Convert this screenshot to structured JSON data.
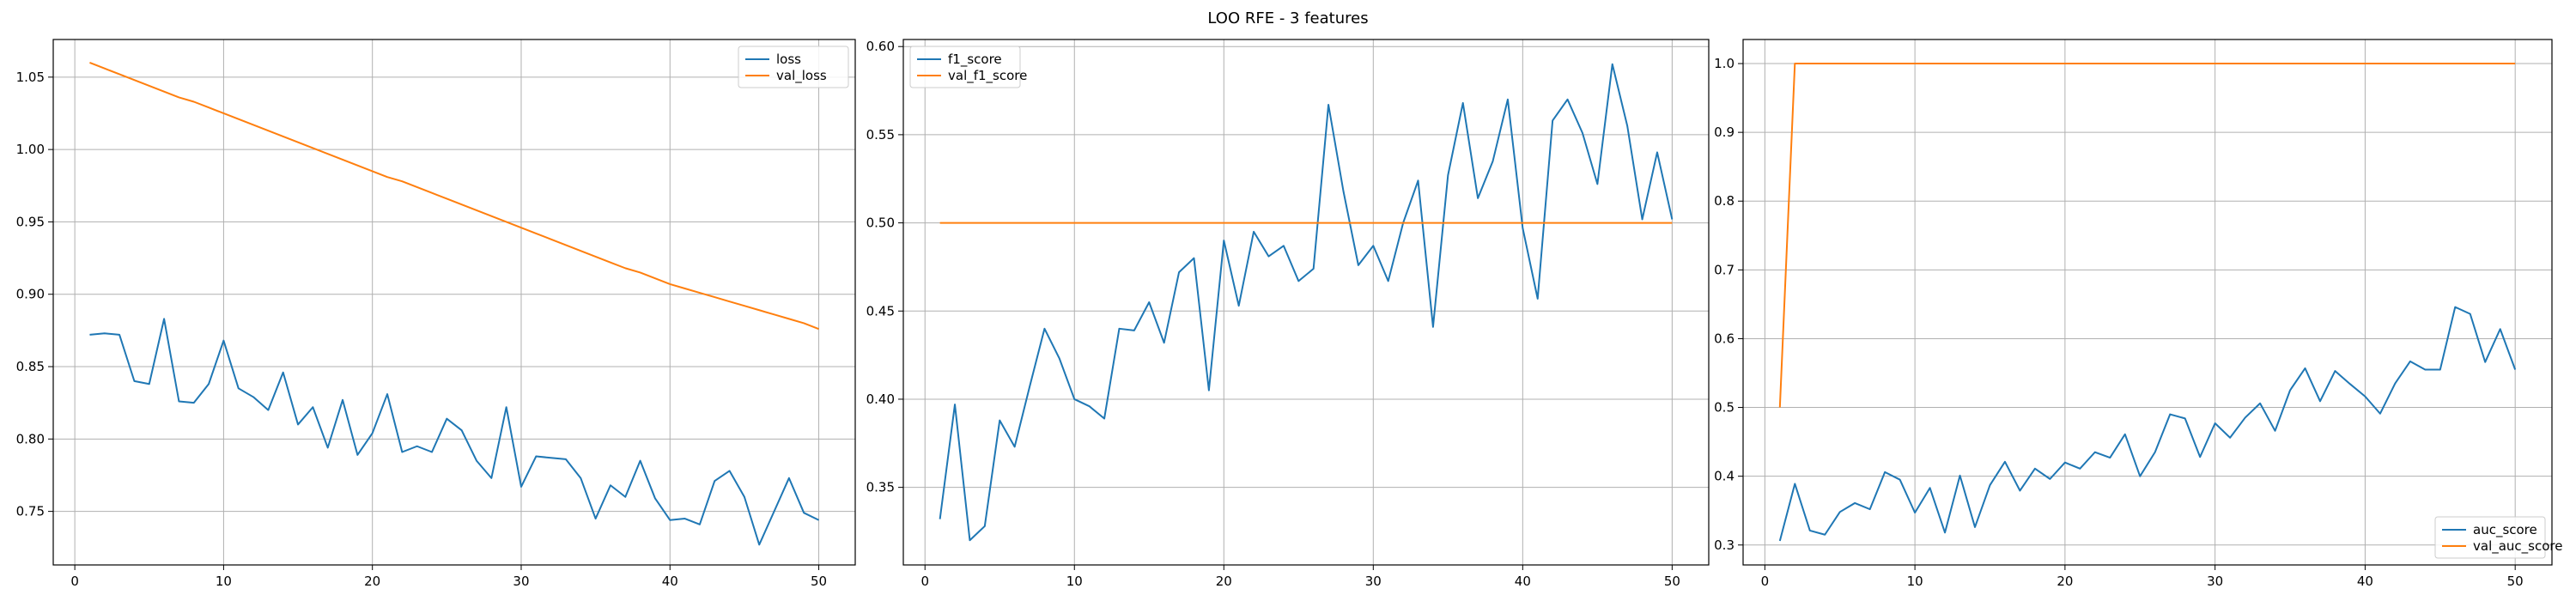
{
  "figure": {
    "suptitle": "LOO RFE - 3 features"
  },
  "colors": {
    "blue": "#1f77b4",
    "orange": "#ff7f0e",
    "grid": "#b0b0b0"
  },
  "chart_data": [
    {
      "type": "line",
      "title": "",
      "xlabel": "",
      "ylabel": "",
      "grid": true,
      "legend_position": "top-right",
      "xlim": [
        -1.45,
        52.45
      ],
      "ylim": [
        0.713,
        1.076
      ],
      "xticks": [
        0,
        10,
        20,
        30,
        40,
        50
      ],
      "yticks": [
        0.75,
        0.8,
        0.85,
        0.9,
        0.95,
        1.0,
        1.05
      ],
      "ytick_labels": [
        "0.75",
        "0.80",
        "0.85",
        "0.90",
        "0.95",
        "1.00",
        "1.05"
      ],
      "x": [
        1,
        2,
        3,
        4,
        5,
        6,
        7,
        8,
        9,
        10,
        11,
        12,
        13,
        14,
        15,
        16,
        17,
        18,
        19,
        20,
        21,
        22,
        23,
        24,
        25,
        26,
        27,
        28,
        29,
        30,
        31,
        32,
        33,
        34,
        35,
        36,
        37,
        38,
        39,
        40,
        41,
        42,
        43,
        44,
        45,
        46,
        47,
        48,
        49,
        50
      ],
      "series": [
        {
          "name": "loss",
          "color": "#1f77b4",
          "values": [
            0.872,
            0.873,
            0.872,
            0.84,
            0.838,
            0.883,
            0.826,
            0.825,
            0.838,
            0.868,
            0.835,
            0.829,
            0.82,
            0.846,
            0.81,
            0.822,
            0.794,
            0.827,
            0.789,
            0.804,
            0.831,
            0.791,
            0.795,
            0.791,
            0.814,
            0.806,
            0.785,
            0.773,
            0.822,
            0.767,
            0.788,
            0.787,
            0.786,
            0.773,
            0.745,
            0.768,
            0.76,
            0.785,
            0.759,
            0.744,
            0.745,
            0.741,
            0.771,
            0.778,
            0.76,
            0.727,
            0.75,
            0.773,
            0.749,
            0.744
          ]
        },
        {
          "name": "val_loss",
          "color": "#ff7f0e",
          "values": [
            1.06,
            1.056,
            1.052,
            1.048,
            1.044,
            1.04,
            1.036,
            1.033,
            1.029,
            1.025,
            1.021,
            1.017,
            1.013,
            1.009,
            1.005,
            1.001,
            0.997,
            0.993,
            0.989,
            0.985,
            0.981,
            0.978,
            0.974,
            0.97,
            0.966,
            0.962,
            0.958,
            0.954,
            0.95,
            0.946,
            0.942,
            0.938,
            0.934,
            0.93,
            0.926,
            0.922,
            0.918,
            0.915,
            0.911,
            0.907,
            0.904,
            0.901,
            0.898,
            0.895,
            0.892,
            0.889,
            0.886,
            0.883,
            0.88,
            0.876
          ]
        }
      ]
    },
    {
      "type": "line",
      "title": "",
      "xlabel": "",
      "ylabel": "",
      "grid": true,
      "legend_position": "top-left",
      "xlim": [
        -1.45,
        52.45
      ],
      "ylim": [
        0.306,
        0.604
      ],
      "xticks": [
        0,
        10,
        20,
        30,
        40,
        50
      ],
      "yticks": [
        0.35,
        0.4,
        0.45,
        0.5,
        0.55,
        0.6
      ],
      "ytick_labels": [
        "0.35",
        "0.40",
        "0.45",
        "0.50",
        "0.55",
        "0.60"
      ],
      "x": [
        1,
        2,
        3,
        4,
        5,
        6,
        7,
        8,
        9,
        10,
        11,
        12,
        13,
        14,
        15,
        16,
        17,
        18,
        19,
        20,
        21,
        22,
        23,
        24,
        25,
        26,
        27,
        28,
        29,
        30,
        31,
        32,
        33,
        34,
        35,
        36,
        37,
        38,
        39,
        40,
        41,
        42,
        43,
        44,
        45,
        46,
        47,
        48,
        49,
        50
      ],
      "series": [
        {
          "name": "f1_score",
          "color": "#1f77b4",
          "values": [
            0.332,
            0.397,
            0.32,
            0.328,
            0.388,
            0.373,
            0.407,
            0.44,
            0.423,
            0.4,
            0.396,
            0.389,
            0.44,
            0.439,
            0.455,
            0.432,
            0.472,
            0.48,
            0.405,
            0.49,
            0.453,
            0.495,
            0.481,
            0.487,
            0.467,
            0.474,
            0.567,
            0.518,
            0.476,
            0.487,
            0.467,
            0.5,
            0.524,
            0.441,
            0.527,
            0.568,
            0.514,
            0.535,
            0.57,
            0.497,
            0.457,
            0.558,
            0.57,
            0.551,
            0.522,
            0.59,
            0.555,
            0.502,
            0.54,
            0.502
          ]
        },
        {
          "name": "val_f1_score",
          "color": "#ff7f0e",
          "values": [
            0.5,
            0.5,
            0.5,
            0.5,
            0.5,
            0.5,
            0.5,
            0.5,
            0.5,
            0.5,
            0.5,
            0.5,
            0.5,
            0.5,
            0.5,
            0.5,
            0.5,
            0.5,
            0.5,
            0.5,
            0.5,
            0.5,
            0.5,
            0.5,
            0.5,
            0.5,
            0.5,
            0.5,
            0.5,
            0.5,
            0.5,
            0.5,
            0.5,
            0.5,
            0.5,
            0.5,
            0.5,
            0.5,
            0.5,
            0.5,
            0.5,
            0.5,
            0.5,
            0.5,
            0.5,
            0.5,
            0.5,
            0.5,
            0.5,
            0.5
          ]
        }
      ]
    },
    {
      "type": "line",
      "title": "",
      "xlabel": "",
      "ylabel": "",
      "grid": true,
      "legend_position": "bottom-right",
      "xlim": [
        -1.45,
        52.45
      ],
      "ylim": [
        0.271,
        1.035
      ],
      "xticks": [
        0,
        10,
        20,
        30,
        40,
        50
      ],
      "yticks": [
        0.3,
        0.4,
        0.5,
        0.6,
        0.7,
        0.8,
        0.9,
        1.0
      ],
      "ytick_labels": [
        "0.3",
        "0.4",
        "0.5",
        "0.6",
        "0.7",
        "0.8",
        "0.9",
        "1.0"
      ],
      "x": [
        1,
        2,
        3,
        4,
        5,
        6,
        7,
        8,
        9,
        10,
        11,
        12,
        13,
        14,
        15,
        16,
        17,
        18,
        19,
        20,
        21,
        22,
        23,
        24,
        25,
        26,
        27,
        28,
        29,
        30,
        31,
        32,
        33,
        34,
        35,
        36,
        37,
        38,
        39,
        40,
        41,
        42,
        43,
        44,
        45,
        46,
        47,
        48,
        49,
        50
      ],
      "series": [
        {
          "name": "auc_score",
          "color": "#1f77b4",
          "values": [
            0.306,
            0.389,
            0.321,
            0.315,
            0.348,
            0.361,
            0.352,
            0.406,
            0.395,
            0.347,
            0.383,
            0.318,
            0.401,
            0.326,
            0.387,
            0.421,
            0.379,
            0.411,
            0.396,
            0.42,
            0.411,
            0.435,
            0.427,
            0.461,
            0.4,
            0.435,
            0.49,
            0.484,
            0.428,
            0.477,
            0.456,
            0.485,
            0.506,
            0.466,
            0.525,
            0.557,
            0.509,
            0.553,
            0.534,
            0.516,
            0.491,
            0.535,
            0.567,
            0.555,
            0.555,
            0.646,
            0.636,
            0.566,
            0.614,
            0.555
          ]
        },
        {
          "name": "val_auc_score",
          "color": "#ff7f0e",
          "values": [
            0.5,
            1.0,
            1.0,
            1.0,
            1.0,
            1.0,
            1.0,
            1.0,
            1.0,
            1.0,
            1.0,
            1.0,
            1.0,
            1.0,
            1.0,
            1.0,
            1.0,
            1.0,
            1.0,
            1.0,
            1.0,
            1.0,
            1.0,
            1.0,
            1.0,
            1.0,
            1.0,
            1.0,
            1.0,
            1.0,
            1.0,
            1.0,
            1.0,
            1.0,
            1.0,
            1.0,
            1.0,
            1.0,
            1.0,
            1.0,
            1.0,
            1.0,
            1.0,
            1.0,
            1.0,
            1.0,
            1.0,
            1.0,
            1.0,
            1.0
          ]
        }
      ]
    }
  ]
}
